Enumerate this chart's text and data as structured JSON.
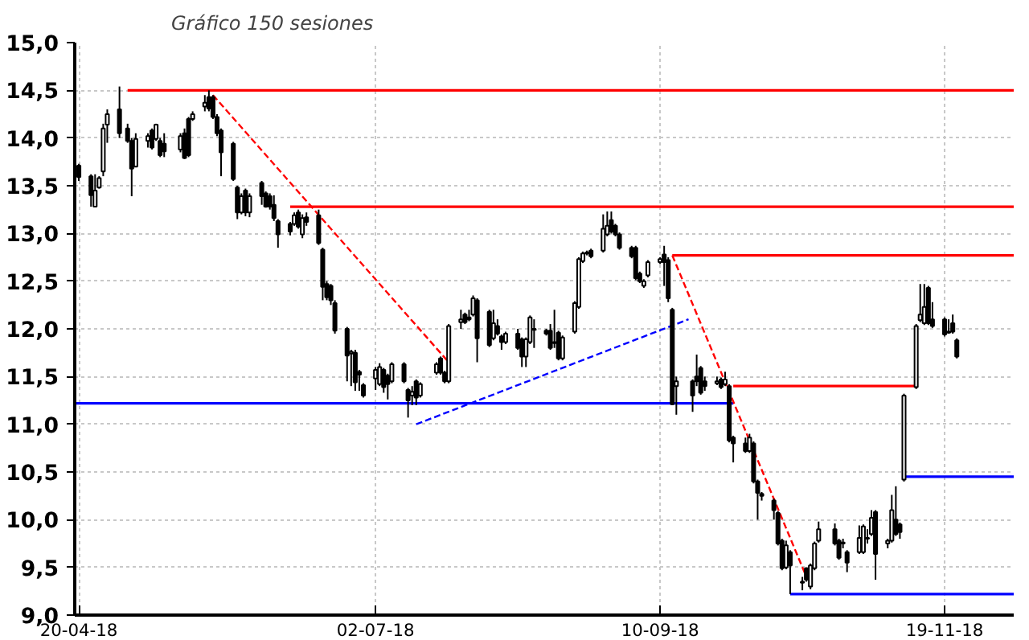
{
  "chart_data": {
    "type": "candlestick",
    "subtitle": "Gráfico 150 sesiones",
    "x": [
      "2018-04-20",
      "2018-04-23",
      "2018-04-24",
      "2018-04-25",
      "2018-04-26",
      "2018-04-27",
      "2018-04-30",
      "2018-05-02",
      "2018-05-03",
      "2018-05-04",
      "2018-05-07",
      "2018-05-08",
      "2018-05-09",
      "2018-05-10",
      "2018-05-11",
      "2018-05-15",
      "2018-05-16",
      "2018-05-17",
      "2018-05-18",
      "2018-05-21",
      "2018-05-22",
      "2018-05-23",
      "2018-05-24",
      "2018-05-25",
      "2018-05-28",
      "2018-05-29",
      "2018-05-30",
      "2018-05-31",
      "2018-06-01",
      "2018-06-04",
      "2018-06-05",
      "2018-06-06",
      "2018-06-07",
      "2018-06-08",
      "2018-06-11",
      "2018-06-12",
      "2018-06-13",
      "2018-06-14",
      "2018-06-15",
      "2018-06-18",
      "2018-06-19",
      "2018-06-20",
      "2018-06-21",
      "2018-06-22",
      "2018-06-25",
      "2018-06-26",
      "2018-06-27",
      "2018-06-28",
      "2018-06-29",
      "2018-07-02",
      "2018-07-03",
      "2018-07-04",
      "2018-07-05",
      "2018-07-06",
      "2018-07-09",
      "2018-07-10",
      "2018-07-11",
      "2018-07-12",
      "2018-07-13",
      "2018-07-17",
      "2018-07-18",
      "2018-07-19",
      "2018-07-20",
      "2018-07-23",
      "2018-07-24",
      "2018-07-25",
      "2018-07-26",
      "2018-07-27",
      "2018-07-30",
      "2018-07-31",
      "2018-08-01",
      "2018-08-02",
      "2018-08-03",
      "2018-08-06",
      "2018-08-07",
      "2018-08-08",
      "2018-08-09",
      "2018-08-10",
      "2018-08-13",
      "2018-08-14",
      "2018-08-15",
      "2018-08-16",
      "2018-08-17",
      "2018-08-20",
      "2018-08-21",
      "2018-08-22",
      "2018-08-23",
      "2018-08-24",
      "2018-08-27",
      "2018-08-28",
      "2018-08-29",
      "2018-08-30",
      "2018-08-31",
      "2018-09-03",
      "2018-09-04",
      "2018-09-05",
      "2018-09-06",
      "2018-09-07",
      "2018-09-10",
      "2018-09-11",
      "2018-09-12",
      "2018-09-13",
      "2018-09-14",
      "2018-09-18",
      "2018-09-19",
      "2018-09-20",
      "2018-09-21",
      "2018-09-24",
      "2018-09-25",
      "2018-09-26",
      "2018-09-27",
      "2018-09-28",
      "2018-10-01",
      "2018-10-02",
      "2018-10-03",
      "2018-10-04",
      "2018-10-05",
      "2018-10-08",
      "2018-10-09",
      "2018-10-10",
      "2018-10-11",
      "2018-10-12",
      "2018-10-15",
      "2018-10-16",
      "2018-10-17",
      "2018-10-18",
      "2018-10-19",
      "2018-10-23",
      "2018-10-24",
      "2018-10-25",
      "2018-10-26",
      "2018-10-29",
      "2018-10-30",
      "2018-10-31",
      "2018-11-01",
      "2018-11-02",
      "2018-11-05",
      "2018-11-06",
      "2018-11-07",
      "2018-11-08",
      "2018-11-09",
      "2018-11-12",
      "2018-11-13",
      "2018-11-14",
      "2018-11-15",
      "2018-11-16",
      "2018-11-19",
      "2018-11-20",
      "2018-11-21",
      "2018-11-22"
    ],
    "ohlc": [
      [
        13.71,
        13.73,
        13.55,
        13.59
      ],
      [
        13.6,
        13.62,
        13.28,
        13.4
      ],
      [
        13.28,
        13.62,
        13.28,
        13.45
      ],
      [
        13.48,
        13.6,
        13.47,
        13.58
      ],
      [
        13.65,
        14.15,
        13.6,
        14.1
      ],
      [
        14.14,
        14.3,
        13.95,
        14.25
      ],
      [
        14.3,
        14.54,
        14.0,
        14.05
      ],
      [
        14.1,
        14.15,
        13.95,
        13.97
      ],
      [
        13.97,
        14.0,
        13.39,
        13.68
      ],
      [
        13.7,
        14.05,
        13.7,
        13.99
      ],
      [
        13.97,
        14.05,
        13.9,
        14.02
      ],
      [
        14.08,
        14.1,
        13.88,
        13.9
      ],
      [
        13.99,
        14.15,
        13.97,
        14.14
      ],
      [
        13.97,
        14.0,
        13.8,
        13.82
      ],
      [
        13.94,
        14.05,
        13.8,
        13.86
      ],
      [
        13.88,
        14.05,
        13.85,
        14.02
      ],
      [
        14.05,
        14.1,
        13.78,
        13.79
      ],
      [
        14.2,
        14.22,
        13.8,
        13.82
      ],
      [
        14.2,
        14.28,
        14.18,
        14.25
      ],
      [
        14.33,
        14.45,
        14.28,
        14.37
      ],
      [
        14.43,
        14.5,
        14.28,
        14.31
      ],
      [
        14.43,
        14.45,
        14.2,
        14.22
      ],
      [
        14.22,
        14.25,
        14.02,
        14.05
      ],
      [
        14.08,
        14.1,
        13.6,
        13.85
      ],
      [
        13.94,
        13.96,
        13.55,
        13.57
      ],
      [
        13.48,
        13.5,
        13.15,
        13.22
      ],
      [
        13.22,
        13.42,
        13.2,
        13.39
      ],
      [
        13.45,
        13.47,
        13.18,
        13.22
      ],
      [
        13.22,
        13.42,
        13.17,
        13.39
      ],
      [
        13.53,
        13.55,
        13.3,
        13.39
      ],
      [
        13.42,
        13.44,
        13.27,
        13.28
      ],
      [
        13.39,
        13.42,
        13.25,
        13.28
      ],
      [
        13.3,
        13.4,
        13.13,
        13.16
      ],
      [
        13.13,
        13.15,
        12.85,
        12.99
      ],
      [
        13.1,
        13.12,
        12.98,
        13.02
      ],
      [
        13.1,
        13.22,
        13.08,
        13.19
      ],
      [
        13.22,
        13.25,
        13.05,
        13.07
      ],
      [
        12.99,
        13.2,
        12.95,
        13.16
      ],
      [
        13.17,
        13.22,
        13.08,
        13.12
      ],
      [
        13.19,
        13.25,
        12.88,
        12.9
      ],
      [
        12.83,
        12.85,
        12.3,
        12.44
      ],
      [
        12.47,
        12.5,
        12.3,
        12.33
      ],
      [
        12.45,
        12.47,
        12.25,
        12.3
      ],
      [
        12.27,
        12.3,
        11.95,
        11.98
      ],
      [
        12.0,
        12.02,
        11.45,
        11.72
      ],
      [
        11.74,
        11.78,
        11.4,
        11.76
      ],
      [
        11.75,
        11.78,
        11.35,
        11.44
      ],
      [
        11.55,
        11.57,
        11.35,
        11.52
      ],
      [
        11.41,
        11.43,
        11.28,
        11.3
      ],
      [
        11.48,
        11.6,
        11.36,
        11.57
      ],
      [
        11.42,
        11.64,
        11.4,
        11.6
      ],
      [
        11.57,
        11.59,
        11.33,
        11.39
      ],
      [
        11.51,
        11.53,
        11.26,
        11.42
      ],
      [
        11.45,
        11.65,
        11.43,
        11.63
      ],
      [
        11.63,
        11.65,
        11.43,
        11.45
      ],
      [
        11.36,
        11.38,
        11.07,
        11.25
      ],
      [
        11.3,
        11.4,
        11.2,
        11.34
      ],
      [
        11.45,
        11.47,
        11.2,
        11.28
      ],
      [
        11.3,
        11.44,
        11.28,
        11.42
      ],
      [
        11.54,
        11.65,
        11.52,
        11.63
      ],
      [
        11.69,
        11.71,
        11.52,
        11.54
      ],
      [
        11.54,
        11.56,
        11.43,
        11.45
      ],
      [
        11.45,
        12.05,
        11.43,
        12.03
      ],
      [
        12.07,
        12.2,
        12.0,
        12.1
      ],
      [
        12.15,
        12.17,
        12.05,
        12.07
      ],
      [
        12.12,
        12.2,
        12.08,
        12.1
      ],
      [
        12.15,
        12.35,
        12.13,
        12.32
      ],
      [
        12.3,
        12.32,
        11.65,
        11.9
      ],
      [
        12.18,
        12.2,
        11.81,
        11.83
      ],
      [
        11.9,
        12.2,
        11.88,
        12.06
      ],
      [
        12.03,
        12.1,
        11.93,
        11.95
      ],
      [
        11.92,
        11.94,
        11.78,
        11.86
      ],
      [
        11.86,
        11.97,
        11.84,
        11.95
      ],
      [
        11.95,
        12.0,
        11.78,
        11.8
      ],
      [
        11.89,
        11.91,
        11.6,
        11.71
      ],
      [
        11.71,
        11.91,
        11.6,
        11.89
      ],
      [
        11.86,
        12.14,
        11.84,
        12.12
      ],
      [
        11.99,
        12.1,
        11.8,
        12.0
      ],
      [
        11.98,
        12.0,
        11.93,
        11.95
      ],
      [
        11.98,
        12.05,
        11.78,
        11.8
      ],
      [
        11.86,
        12.2,
        11.8,
        11.85
      ],
      [
        11.96,
        11.98,
        11.67,
        11.69
      ],
      [
        11.69,
        11.93,
        11.67,
        11.91
      ],
      [
        11.97,
        12.29,
        11.95,
        12.27
      ],
      [
        12.23,
        12.75,
        12.21,
        12.73
      ],
      [
        12.71,
        12.81,
        12.69,
        12.79
      ],
      [
        12.79,
        12.82,
        12.77,
        12.8
      ],
      [
        12.82,
        12.84,
        12.74,
        12.76
      ],
      [
        12.82,
        13.2,
        12.8,
        13.05
      ],
      [
        12.99,
        13.23,
        12.97,
        13.08
      ],
      [
        13.14,
        13.23,
        13.0,
        13.02
      ],
      [
        13.08,
        13.1,
        12.97,
        12.99
      ],
      [
        12.99,
        13.01,
        12.83,
        12.85
      ],
      [
        12.85,
        12.87,
        12.74,
        12.76
      ],
      [
        12.85,
        12.87,
        12.51,
        12.53
      ],
      [
        12.58,
        12.6,
        12.48,
        12.5
      ],
      [
        12.45,
        12.52,
        12.43,
        12.5
      ],
      [
        12.56,
        12.72,
        12.54,
        12.7
      ],
      [
        12.7,
        12.75,
        12.68,
        12.73
      ],
      [
        12.78,
        12.87,
        12.45,
        12.7
      ],
      [
        12.72,
        12.75,
        12.28,
        12.32
      ],
      [
        12.2,
        12.22,
        11.2,
        11.21
      ],
      [
        11.4,
        11.5,
        11.1,
        11.45
      ],
      [
        11.45,
        11.47,
        11.13,
        11.3
      ],
      [
        11.5,
        11.73,
        11.4,
        11.45
      ],
      [
        11.59,
        11.61,
        11.31,
        11.33
      ],
      [
        11.45,
        11.5,
        11.35,
        11.4
      ],
      [
        11.43,
        11.5,
        11.41,
        11.45
      ],
      [
        11.47,
        11.49,
        11.37,
        11.39
      ],
      [
        11.42,
        11.55,
        11.4,
        11.47
      ],
      [
        11.4,
        11.42,
        10.81,
        10.83
      ],
      [
        10.86,
        10.88,
        10.6,
        10.8
      ],
      [
        10.8,
        10.86,
        10.7,
        10.72
      ],
      [
        10.72,
        10.9,
        10.7,
        10.86
      ],
      [
        10.8,
        10.82,
        10.38,
        10.4
      ],
      [
        10.4,
        10.42,
        10.0,
        10.28
      ],
      [
        10.27,
        10.29,
        10.2,
        10.25
      ],
      [
        10.2,
        10.22,
        10.0,
        10.1
      ],
      [
        10.07,
        10.09,
        9.73,
        9.75
      ],
      [
        9.78,
        9.8,
        9.47,
        9.49
      ],
      [
        9.5,
        9.78,
        9.48,
        9.73
      ],
      [
        9.66,
        9.68,
        9.22,
        9.52
      ],
      [
        9.35,
        9.4,
        9.26,
        9.34
      ],
      [
        9.49,
        9.5,
        9.35,
        9.37
      ],
      [
        9.3,
        9.54,
        9.27,
        9.52
      ],
      [
        9.49,
        9.77,
        9.47,
        9.75
      ],
      [
        9.78,
        9.98,
        9.76,
        9.9
      ],
      [
        9.9,
        9.96,
        9.73,
        9.75
      ],
      [
        9.78,
        9.8,
        9.58,
        9.6
      ],
      [
        9.76,
        9.8,
        9.7,
        9.75
      ],
      [
        9.66,
        9.68,
        9.45,
        9.55
      ],
      [
        9.66,
        9.94,
        9.64,
        9.81
      ],
      [
        9.66,
        9.95,
        9.64,
        9.93
      ],
      [
        9.8,
        9.9,
        9.75,
        9.81
      ],
      [
        9.85,
        10.1,
        9.83,
        10.02
      ],
      [
        10.08,
        10.1,
        9.37,
        9.64
      ],
      [
        9.75,
        9.8,
        9.7,
        9.78
      ],
      [
        9.78,
        10.26,
        9.76,
        10.1
      ],
      [
        10.0,
        10.35,
        9.83,
        9.85
      ],
      [
        9.95,
        9.97,
        9.8,
        9.87
      ],
      [
        10.42,
        11.32,
        10.4,
        11.3
      ],
      [
        11.39,
        12.05,
        11.37,
        12.03
      ],
      [
        12.09,
        12.47,
        12.07,
        12.15
      ],
      [
        12.06,
        12.47,
        12.04,
        12.23
      ],
      [
        12.43,
        12.45,
        12.04,
        12.06
      ],
      [
        12.1,
        12.28,
        12.01,
        12.03
      ],
      [
        12.1,
        12.12,
        11.92,
        11.94
      ],
      [
        11.97,
        12.1,
        11.95,
        11.96
      ],
      [
        12.06,
        12.15,
        11.95,
        11.97
      ],
      [
        11.88,
        11.9,
        11.69,
        11.71
      ]
    ],
    "series": [
      {
        "type": "line",
        "color": "#ff0000",
        "line_style": "solid",
        "x": [
          "2018-05-02",
          "2018-12-06"
        ],
        "values": [
          14.5,
          14.5
        ]
      },
      {
        "type": "line",
        "color": "#ff0000",
        "line_style": "solid",
        "x": [
          "2018-06-11",
          "2018-12-06"
        ],
        "values": [
          13.28,
          13.28
        ]
      },
      {
        "type": "line",
        "color": "#ff0000",
        "line_style": "solid",
        "x": [
          "2018-09-13",
          "2018-12-06"
        ],
        "values": [
          12.77,
          12.77
        ]
      },
      {
        "type": "line",
        "color": "#ff0000",
        "line_style": "solid",
        "x": [
          "2018-09-28",
          "2018-11-12"
        ],
        "values": [
          11.4,
          11.4
        ]
      },
      {
        "type": "line",
        "color": "#0000ff",
        "line_style": "solid",
        "x": [
          "2018-04-19",
          "2018-09-28"
        ],
        "values": [
          11.22,
          11.22
        ]
      },
      {
        "type": "line",
        "color": "#0000ff",
        "line_style": "solid",
        "x": [
          "2018-11-09",
          "2018-12-06"
        ],
        "values": [
          10.45,
          10.45
        ]
      },
      {
        "type": "line",
        "color": "#0000ff",
        "line_style": "solid",
        "x": [
          "2018-10-12",
          "2018-12-06"
        ],
        "values": [
          9.22,
          9.22
        ]
      },
      {
        "type": "line",
        "color": "#ff0000",
        "line_style": "dashed",
        "x": [
          "2018-05-23",
          "2018-07-20"
        ],
        "values": [
          14.45,
          11.65
        ]
      },
      {
        "type": "line",
        "color": "#ff0000",
        "line_style": "dashed",
        "x": [
          "2018-09-13",
          "2018-10-16"
        ],
        "values": [
          12.77,
          9.4
        ]
      },
      {
        "type": "line",
        "color": "#0000ff",
        "line_style": "dashed",
        "x": [
          "2018-07-12",
          "2018-09-17"
        ],
        "values": [
          11.0,
          12.1
        ]
      }
    ],
    "xlim": [
      "2018-04-19",
      "2018-12-06"
    ],
    "xticks": [
      {
        "value": "2018-04-20",
        "label": "20-04-18"
      },
      {
        "value": "2018-07-02",
        "label": "02-07-18"
      },
      {
        "value": "2018-09-10",
        "label": "10-09-18"
      },
      {
        "value": "2018-11-19",
        "label": "19-11-18"
      }
    ],
    "ylim": [
      9.0,
      15.0
    ],
    "yticks": [
      {
        "value": 9.0,
        "label": "9,0"
      },
      {
        "value": 9.5,
        "label": "9,5"
      },
      {
        "value": 10.0,
        "label": "10,0"
      },
      {
        "value": 10.5,
        "label": "10,5"
      },
      {
        "value": 11.0,
        "label": "11,0"
      },
      {
        "value": 11.5,
        "label": "11,5"
      },
      {
        "value": 12.0,
        "label": "12,0"
      },
      {
        "value": 12.5,
        "label": "12,5"
      },
      {
        "value": 13.0,
        "label": "13,0"
      },
      {
        "value": 13.5,
        "label": "13,5"
      },
      {
        "value": 14.0,
        "label": "14,0"
      },
      {
        "value": 14.5,
        "label": "14,5"
      },
      {
        "value": 15.0,
        "label": "15,0"
      }
    ],
    "grid": true
  }
}
